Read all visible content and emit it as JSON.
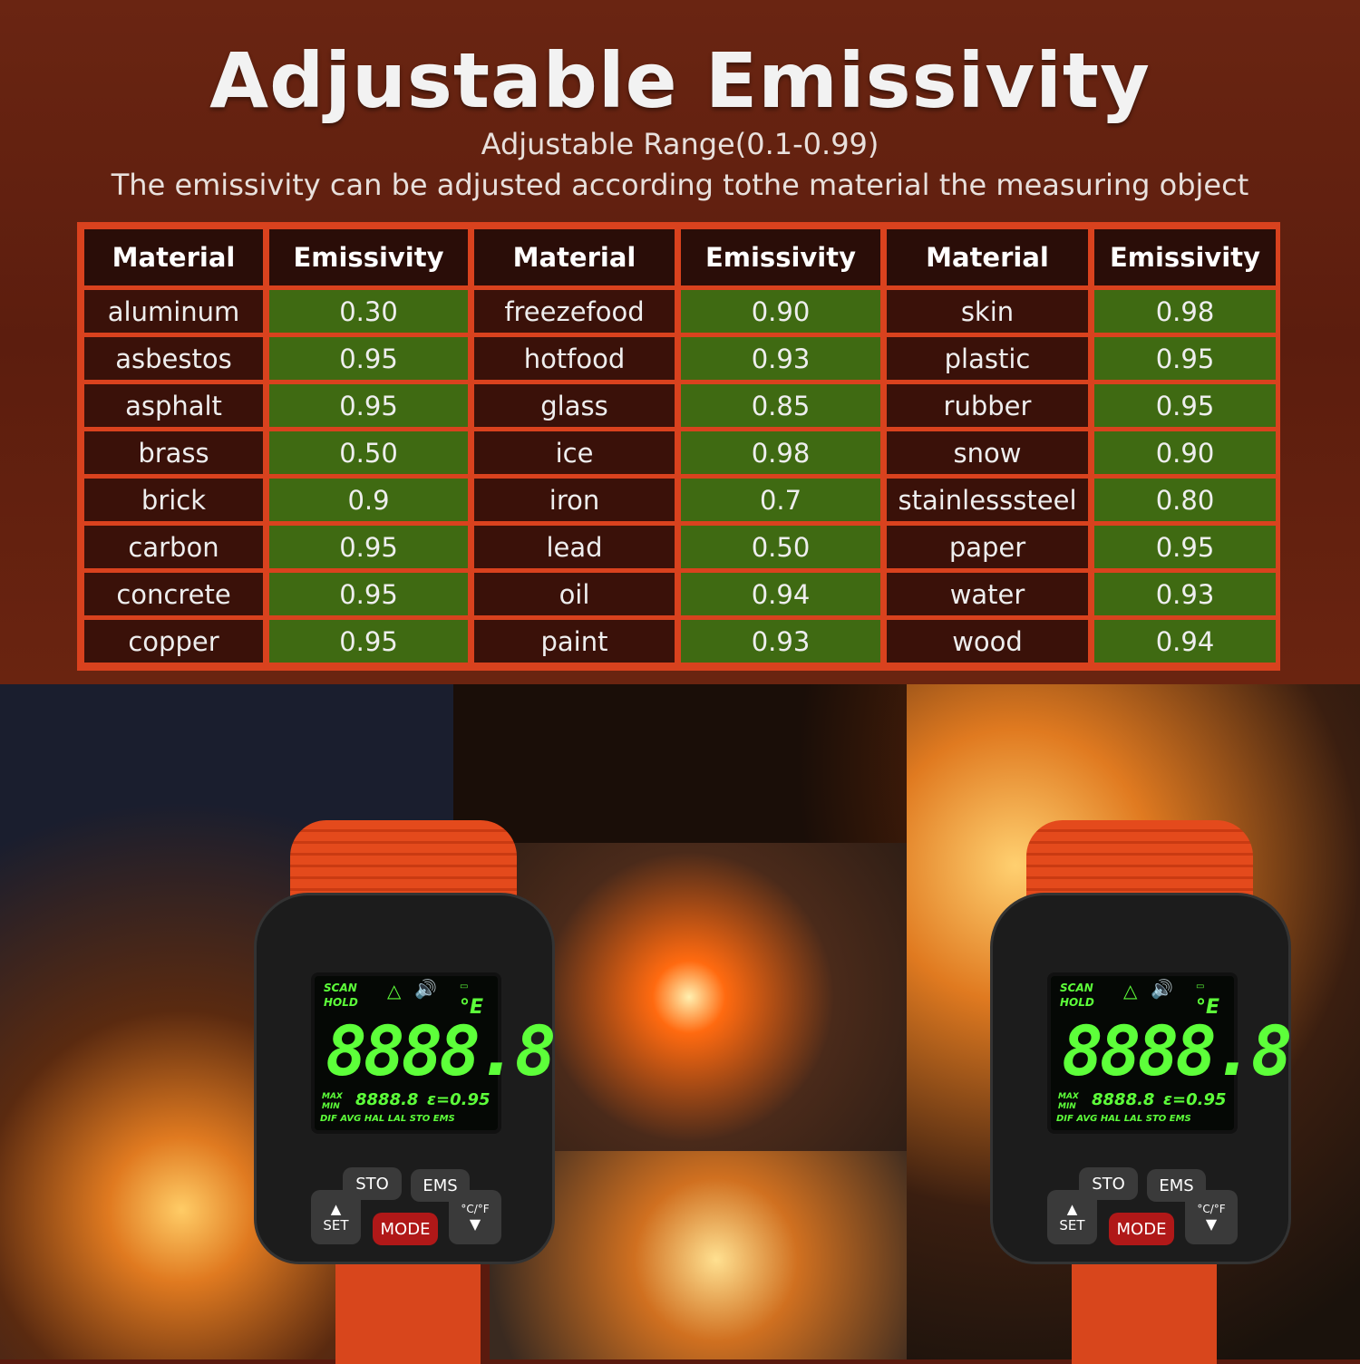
{
  "title": "Adjustable Emissivity",
  "subtitle": "Adjustable Range(0.1-0.99)",
  "description": "The emissivity can be adjusted according tothe material the measuring object",
  "colors": {
    "border": "#d9421e",
    "material_cell": "#3a1109",
    "emissivity_cell": "#3f6a12",
    "lcd": "#5dff3a"
  },
  "table": {
    "headers": [
      "Material",
      "Emissivity",
      "Material",
      "Emissivity",
      "Material",
      "Emissivity"
    ],
    "rows": [
      [
        "aluminum",
        "0.30",
        "freezefood",
        "0.90",
        "skin",
        "0.98"
      ],
      [
        "asbestos",
        "0.95",
        "hotfood",
        "0.93",
        "plastic",
        "0.95"
      ],
      [
        "asphalt",
        "0.95",
        "glass",
        "0.85",
        "rubber",
        "0.95"
      ],
      [
        "brass",
        "0.50",
        "ice",
        "0.98",
        "snow",
        "0.90"
      ],
      [
        "brick",
        "0.9",
        "iron",
        "0.7",
        "stainlesssteel",
        "0.80"
      ],
      [
        "carbon",
        "0.95",
        "lead",
        "0.50",
        "paper",
        "0.95"
      ],
      [
        "concrete",
        "0.95",
        "oil",
        "0.94",
        "water",
        "0.93"
      ],
      [
        "copper",
        "0.95",
        "paint",
        "0.93",
        "wood",
        "0.94"
      ]
    ]
  },
  "device": {
    "scan": "SCAN",
    "hold": "HOLD",
    "unit": "°E",
    "reading": "8888.8",
    "max": "MAX",
    "min": "MIN",
    "sub_reading": "8888.8",
    "emissivity": "ε=0.95",
    "modes": "DIF AVG HAL LAL STO EMS",
    "buttons": {
      "sto": "STO",
      "ems": "EMS",
      "up": "▲",
      "set": "SET",
      "mode": "MODE",
      "unit": "°C/°F",
      "down": "▼"
    }
  }
}
